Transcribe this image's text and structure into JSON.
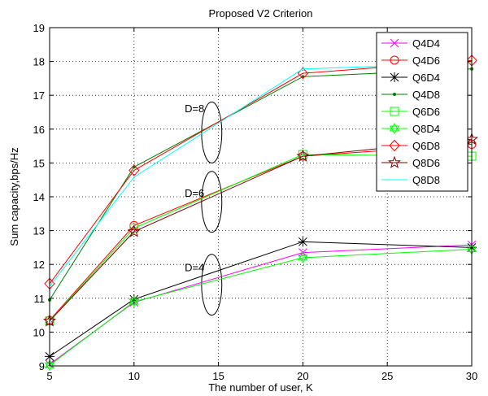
{
  "chart_data": {
    "type": "line",
    "title": "Proposed V2 Criterion",
    "xlabel": "The number of user, K",
    "ylabel": "Sum capacity,bps/Hz",
    "xlim": [
      5,
      30
    ],
    "ylim": [
      9,
      19
    ],
    "xticks": [
      5,
      10,
      15,
      20,
      25,
      30
    ],
    "yticks": [
      9,
      10,
      11,
      12,
      13,
      14,
      15,
      16,
      17,
      18,
      19
    ],
    "grid": "dotted",
    "legend_position": "top-right",
    "x": [
      5,
      10,
      20,
      30
    ],
    "series": [
      {
        "name": "Q4D4",
        "color": "#ff00ff",
        "marker": "x",
        "values": [
          9.05,
          10.88,
          12.35,
          12.58
        ]
      },
      {
        "name": "Q4D6",
        "color": "#ff0000",
        "marker": "circle",
        "values": [
          10.35,
          13.15,
          15.2,
          15.55
        ]
      },
      {
        "name": "Q6D4",
        "color": "#000000",
        "marker": "asterisk",
        "values": [
          9.28,
          10.97,
          12.67,
          12.5
        ]
      },
      {
        "name": "Q4D8",
        "color": "#007f00",
        "marker": "dot",
        "values": [
          10.95,
          14.88,
          17.55,
          17.78
        ]
      },
      {
        "name": "Q6D6",
        "color": "#00ff00",
        "marker": "square",
        "values": [
          10.33,
          13.07,
          15.25,
          15.2
        ]
      },
      {
        "name": "Q8D4",
        "color": "#00ff00",
        "marker": "hexagram",
        "values": [
          9.02,
          10.9,
          12.2,
          12.45
        ]
      },
      {
        "name": "Q6D8",
        "color": "#ff0000",
        "marker": "diamond",
        "values": [
          11.43,
          14.78,
          17.65,
          18.03
        ]
      },
      {
        "name": "Q8D6",
        "color": "#7f0000",
        "marker": "star",
        "values": [
          10.33,
          12.97,
          15.2,
          15.7
        ]
      },
      {
        "name": "Q8D8",
        "color": "#00ffff",
        "marker": "none",
        "values": [
          11.35,
          14.58,
          17.78,
          17.95
        ]
      }
    ],
    "annotations": [
      {
        "text": "D=8",
        "x": 13.0,
        "y": 16.5,
        "ellipse_center": [
          14.6,
          15.9
        ],
        "ellipse_rx": 0.6,
        "ellipse_ry": 0.9
      },
      {
        "text": "D=6",
        "x": 13.0,
        "y": 14.0,
        "ellipse_center": [
          14.6,
          13.85
        ],
        "ellipse_rx": 0.6,
        "ellipse_ry": 0.9
      },
      {
        "text": "D=4",
        "x": 13.0,
        "y": 11.8,
        "ellipse_center": [
          14.6,
          11.4
        ],
        "ellipse_rx": 0.6,
        "ellipse_ry": 0.9
      }
    ]
  }
}
